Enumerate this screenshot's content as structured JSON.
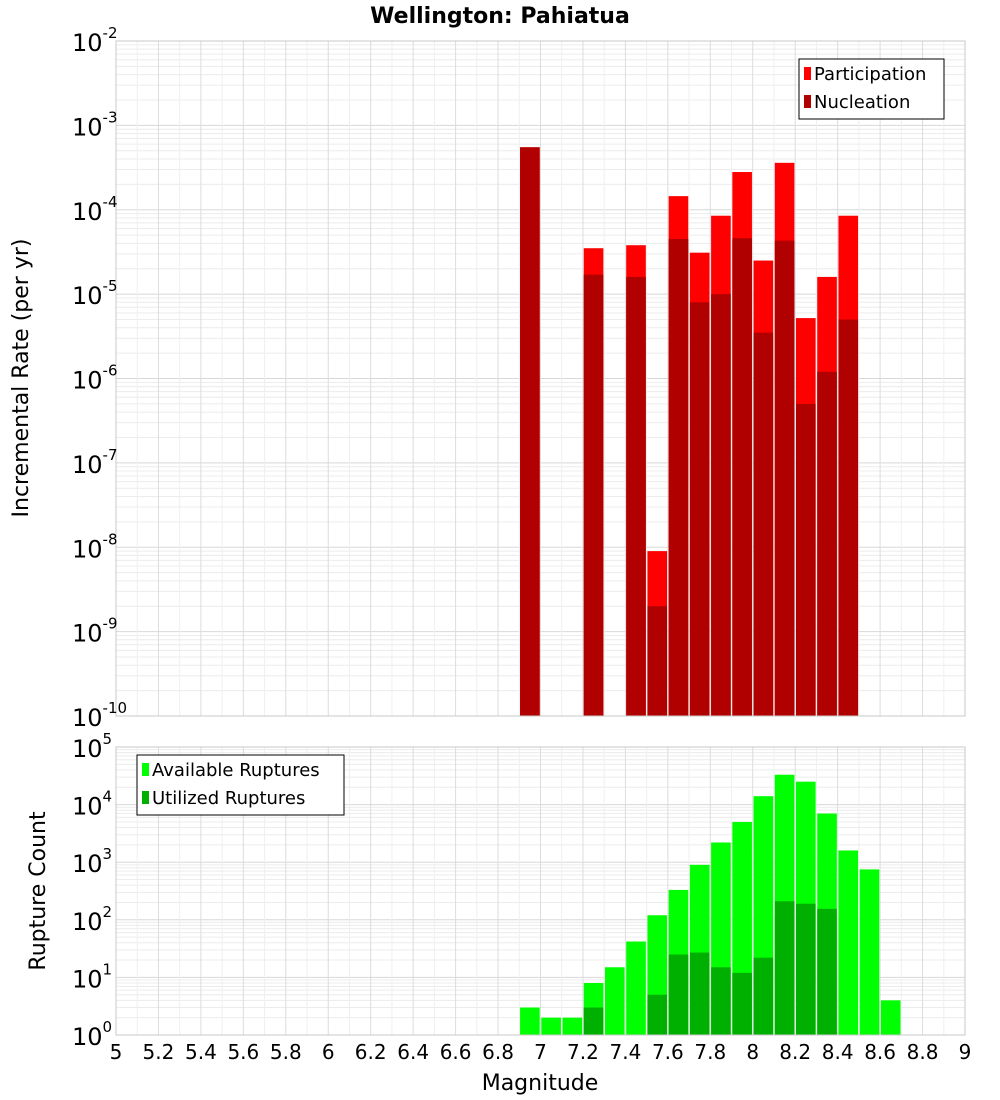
{
  "chart_data": [
    {
      "type": "bar",
      "title": "Wellington: Pahiatua",
      "xlabel": "",
      "ylabel": "Incremental Rate (per yr)",
      "y_scale": "log",
      "xlim": [
        5,
        9
      ],
      "ylim_exp": [
        -10,
        -2
      ],
      "bar_width": 0.1,
      "grid": true,
      "legend_position": "top-right",
      "x": [
        6.95,
        7.25,
        7.45,
        7.55,
        7.65,
        7.75,
        7.85,
        7.95,
        8.05,
        8.15,
        8.25,
        8.35,
        8.45
      ],
      "series": [
        {
          "name": "Participation",
          "color": "#ff0000",
          "values": [
            0.00055,
            3.5e-05,
            3.8e-05,
            9e-09,
            0.000145,
            3.1e-05,
            8.5e-05,
            0.00028,
            2.5e-05,
            0.00036,
            5.2e-06,
            1.6e-05,
            8.5e-05
          ]
        },
        {
          "name": "Nucleation",
          "color": "#b00000",
          "values": [
            0.00055,
            1.7e-05,
            1.6e-05,
            2e-09,
            4.5e-05,
            8e-06,
            1e-05,
            4.6e-05,
            3.5e-06,
            4.3e-05,
            5e-07,
            1.2e-06,
            5e-06
          ]
        }
      ]
    },
    {
      "type": "bar",
      "title": "",
      "xlabel": "Magnitude",
      "ylabel": "Rupture Count",
      "y_scale": "log",
      "xlim": [
        5,
        9
      ],
      "ylim_exp": [
        0,
        5
      ],
      "bar_width": 0.1,
      "grid": true,
      "legend_position": "top-left",
      "x_ticks": [
        "5",
        "5.2",
        "5.4",
        "5.6",
        "5.8",
        "6",
        "6.2",
        "6.4",
        "6.6",
        "6.8",
        "7",
        "7.2",
        "7.4",
        "7.6",
        "7.8",
        "8",
        "8.2",
        "8.4",
        "8.6",
        "8.8",
        "9"
      ],
      "x": [
        6.95,
        7.05,
        7.15,
        7.25,
        7.35,
        7.45,
        7.55,
        7.65,
        7.75,
        7.85,
        7.95,
        8.05,
        8.15,
        8.25,
        8.35,
        8.45,
        8.55,
        8.65
      ],
      "series": [
        {
          "name": "Available Ruptures",
          "color": "#00ff00",
          "values": [
            3,
            2,
            2,
            8,
            15,
            42,
            120,
            330,
            900,
            2200,
            5000,
            14000,
            33000,
            25000,
            7000,
            1600,
            750,
            4
          ]
        },
        {
          "name": "Utilized Ruptures",
          "color": "#00b000",
          "values": [
            1,
            0,
            0,
            3,
            0,
            1,
            5,
            25,
            27,
            15,
            12,
            22,
            210,
            190,
            155,
            1,
            0,
            0
          ]
        }
      ]
    }
  ]
}
